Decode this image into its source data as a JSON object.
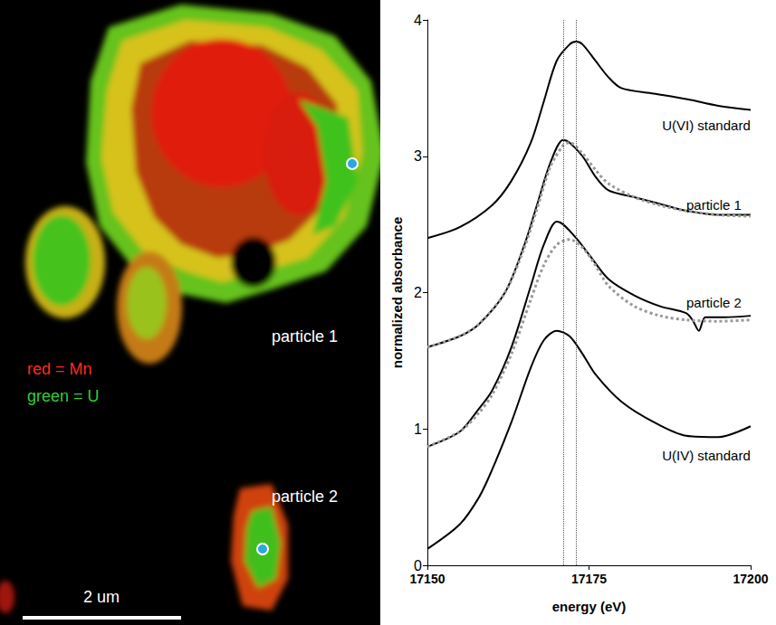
{
  "map": {
    "particle_labels": [
      "particle 1",
      "particle 2"
    ],
    "legend": [
      {
        "text": "red = Mn",
        "color": "#ff2a1a"
      },
      {
        "text": "green = U",
        "color": "#33cc33"
      }
    ],
    "scale_bar": "2 um"
  },
  "chart_data": {
    "type": "line",
    "x_label": "energy (eV)",
    "y_label": "normalized absorbance",
    "xlim": [
      17150,
      17200
    ],
    "xticks": [
      17150,
      17175,
      17200
    ],
    "ylim": [
      0,
      4
    ],
    "yticks": [
      0,
      1,
      2,
      3,
      4
    ],
    "grid": false,
    "annotations": [
      "U(VI) standard",
      "particle 1",
      "particle 2",
      "U(IV) standard"
    ],
    "reference_lines_x": [
      17171,
      17173
    ],
    "series": [
      {
        "color": "#000000",
        "line_style": "solid",
        "x": [
          17150,
          17155,
          17160,
          17163,
          17166,
          17168,
          17170,
          17172,
          17173,
          17174,
          17176,
          17178,
          17180,
          17185,
          17190,
          17195,
          17200
        ],
        "values": [
          2.4,
          2.48,
          2.64,
          2.82,
          3.1,
          3.4,
          3.7,
          3.82,
          3.84,
          3.82,
          3.7,
          3.58,
          3.5,
          3.46,
          3.42,
          3.37,
          3.34
        ]
      },
      {
        "color": "#000000",
        "line_style": "solid",
        "x": [
          17150,
          17155,
          17158,
          17162,
          17165,
          17167,
          17169,
          17171,
          17172,
          17174,
          17176,
          17178,
          17182,
          17186,
          17190,
          17195,
          17200
        ],
        "values": [
          1.6,
          1.68,
          1.77,
          2.0,
          2.35,
          2.65,
          2.95,
          3.12,
          3.1,
          3.0,
          2.85,
          2.75,
          2.7,
          2.65,
          2.6,
          2.57,
          2.57
        ]
      },
      {
        "color": "#999999",
        "line_style": "dotted",
        "x": [
          17150,
          17155,
          17158,
          17162,
          17165,
          17167,
          17169,
          17171,
          17172,
          17174,
          17176,
          17178,
          17182,
          17186,
          17190,
          17195,
          17200
        ],
        "values": [
          1.6,
          1.68,
          1.77,
          2.0,
          2.33,
          2.62,
          2.92,
          3.08,
          3.1,
          3.02,
          2.9,
          2.8,
          2.7,
          2.64,
          2.6,
          2.57,
          2.56
        ]
      },
      {
        "color": "#000000",
        "line_style": "solid",
        "x": [
          17150,
          17155,
          17158,
          17160,
          17163,
          17166,
          17168,
          17170,
          17171,
          17173,
          17175,
          17178,
          17182,
          17186,
          17190,
          17191,
          17192,
          17193,
          17196,
          17200
        ],
        "values": [
          0.87,
          0.98,
          1.15,
          1.28,
          1.6,
          2.05,
          2.35,
          2.52,
          2.5,
          2.4,
          2.28,
          2.1,
          1.98,
          1.9,
          1.85,
          1.8,
          1.72,
          1.82,
          1.82,
          1.83
        ]
      },
      {
        "color": "#999999",
        "line_style": "dotted",
        "x": [
          17150,
          17155,
          17158,
          17160,
          17163,
          17166,
          17168,
          17170,
          17172,
          17174,
          17176,
          17178,
          17182,
          17186,
          17190,
          17195,
          17200
        ],
        "values": [
          0.87,
          0.98,
          1.12,
          1.25,
          1.55,
          1.95,
          2.2,
          2.35,
          2.39,
          2.33,
          2.2,
          2.05,
          1.9,
          1.83,
          1.8,
          1.79,
          1.8
        ]
      },
      {
        "color": "#000000",
        "line_style": "solid",
        "x": [
          17150,
          17155,
          17158,
          17160,
          17163,
          17166,
          17168,
          17170,
          17172,
          17174,
          17176,
          17180,
          17185,
          17190,
          17195,
          17200
        ],
        "values": [
          0.12,
          0.3,
          0.5,
          0.7,
          1.05,
          1.45,
          1.65,
          1.72,
          1.68,
          1.55,
          1.4,
          1.2,
          1.05,
          0.95,
          0.94,
          1.02
        ]
      }
    ]
  }
}
